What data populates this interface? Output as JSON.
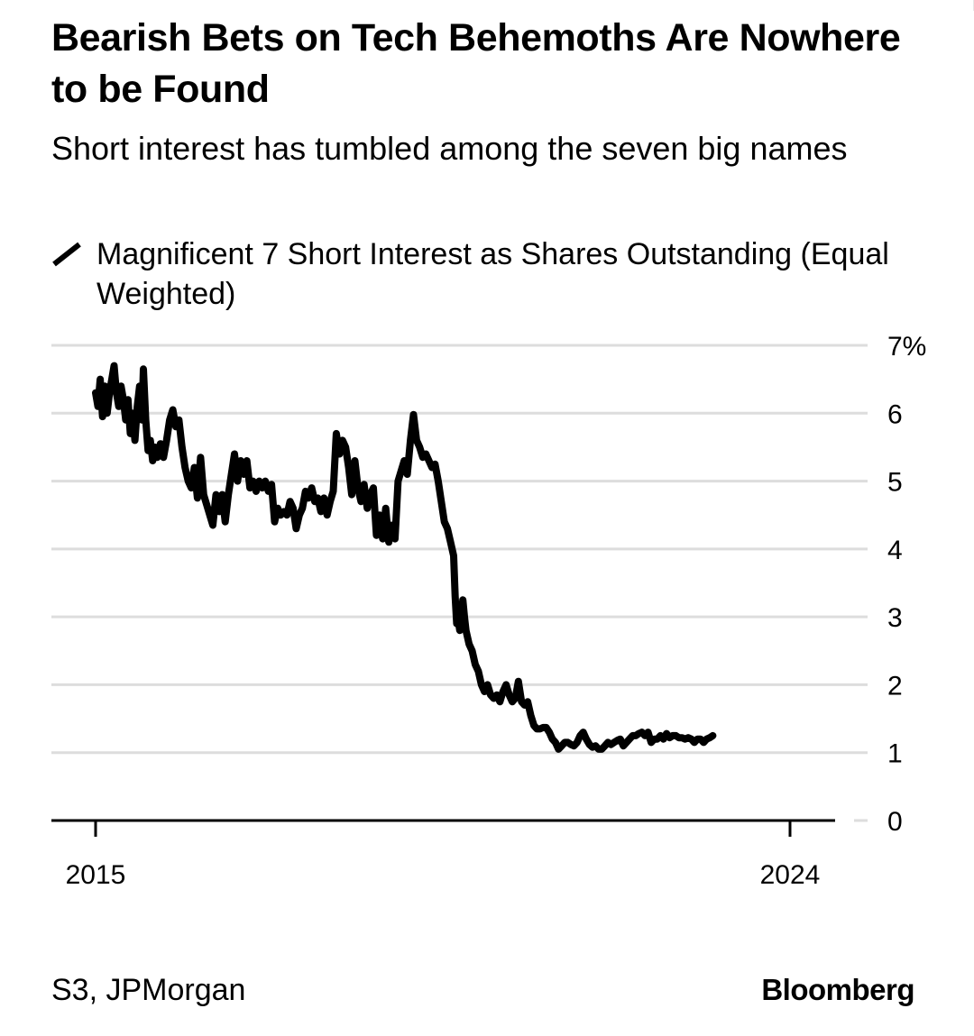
{
  "title": "Bearish Bets on Tech Behemoths Are Nowhere to be Found",
  "subtitle": "Short interest has tumbled among the seven big names",
  "source": "S3, JPMorgan",
  "brand": "Bloomberg",
  "colors": {
    "line": "#000000",
    "grid": "#dddddd",
    "text": "#000000",
    "background": "#ffffff"
  },
  "chart_data": {
    "type": "line",
    "legend_position": "top-left",
    "grid": true,
    "x_range": [
      2015.0,
      2024.1
    ],
    "ylim": [
      0,
      7
    ],
    "x_ticks": [
      {
        "value": 2015,
        "label": "2015"
      },
      {
        "value": 2024,
        "label": "2024"
      }
    ],
    "y_ticks": [
      {
        "value": 0,
        "label": "0"
      },
      {
        "value": 1,
        "label": "1"
      },
      {
        "value": 2,
        "label": "2"
      },
      {
        "value": 3,
        "label": "3"
      },
      {
        "value": 4,
        "label": "4"
      },
      {
        "value": 5,
        "label": "5"
      },
      {
        "value": 6,
        "label": "6"
      },
      {
        "value": 7,
        "label": "7%"
      }
    ],
    "series": [
      {
        "name": "Magnificent 7 Short Interest as Shares Outstanding (Equal Weighted)",
        "points": [
          [
            2015.0,
            6.3
          ],
          [
            2015.03,
            6.1
          ],
          [
            2015.06,
            6.5
          ],
          [
            2015.09,
            5.95
          ],
          [
            2015.12,
            6.4
          ],
          [
            2015.15,
            6.0
          ],
          [
            2015.18,
            6.3
          ],
          [
            2015.21,
            6.5
          ],
          [
            2015.24,
            6.7
          ],
          [
            2015.27,
            6.3
          ],
          [
            2015.3,
            6.1
          ],
          [
            2015.33,
            6.4
          ],
          [
            2015.36,
            6.2
          ],
          [
            2015.39,
            5.9
          ],
          [
            2015.42,
            6.2
          ],
          [
            2015.45,
            5.7
          ],
          [
            2015.48,
            6.0
          ],
          [
            2015.51,
            5.6
          ],
          [
            2015.54,
            6.1
          ],
          [
            2015.57,
            6.4
          ],
          [
            2015.6,
            5.9
          ],
          [
            2015.62,
            6.65
          ],
          [
            2015.65,
            5.9
          ],
          [
            2015.68,
            5.45
          ],
          [
            2015.71,
            5.6
          ],
          [
            2015.74,
            5.3
          ],
          [
            2015.77,
            5.5
          ],
          [
            2015.8,
            5.35
          ],
          [
            2015.84,
            5.55
          ],
          [
            2015.88,
            5.35
          ],
          [
            2015.92,
            5.6
          ],
          [
            2015.96,
            5.9
          ],
          [
            2016.0,
            6.05
          ],
          [
            2016.04,
            5.8
          ],
          [
            2016.08,
            5.9
          ],
          [
            2016.12,
            5.5
          ],
          [
            2016.16,
            5.2
          ],
          [
            2016.2,
            5.0
          ],
          [
            2016.24,
            4.9
          ],
          [
            2016.28,
            5.2
          ],
          [
            2016.32,
            4.75
          ],
          [
            2016.36,
            5.35
          ],
          [
            2016.4,
            4.8
          ],
          [
            2016.44,
            4.65
          ],
          [
            2016.48,
            4.5
          ],
          [
            2016.52,
            4.35
          ],
          [
            2016.56,
            4.8
          ],
          [
            2016.6,
            4.55
          ],
          [
            2016.64,
            4.8
          ],
          [
            2016.68,
            4.4
          ],
          [
            2016.72,
            4.8
          ],
          [
            2016.76,
            5.1
          ],
          [
            2016.8,
            5.4
          ],
          [
            2016.84,
            5.0
          ],
          [
            2016.88,
            5.3
          ],
          [
            2016.92,
            5.1
          ],
          [
            2016.96,
            5.3
          ],
          [
            2017.0,
            4.9
          ],
          [
            2017.04,
            5.0
          ],
          [
            2017.08,
            4.85
          ],
          [
            2017.12,
            5.0
          ],
          [
            2017.16,
            4.9
          ],
          [
            2017.2,
            5.0
          ],
          [
            2017.24,
            4.85
          ],
          [
            2017.28,
            4.95
          ],
          [
            2017.32,
            4.4
          ],
          [
            2017.36,
            4.6
          ],
          [
            2017.4,
            4.5
          ],
          [
            2017.44,
            4.55
          ],
          [
            2017.48,
            4.5
          ],
          [
            2017.52,
            4.7
          ],
          [
            2017.56,
            4.6
          ],
          [
            2017.6,
            4.3
          ],
          [
            2017.64,
            4.5
          ],
          [
            2017.68,
            4.6
          ],
          [
            2017.72,
            4.85
          ],
          [
            2017.76,
            4.75
          ],
          [
            2017.8,
            4.9
          ],
          [
            2017.84,
            4.7
          ],
          [
            2017.88,
            4.75
          ],
          [
            2017.92,
            4.55
          ],
          [
            2017.96,
            4.75
          ],
          [
            2018.0,
            4.5
          ],
          [
            2018.04,
            4.7
          ],
          [
            2018.08,
            4.85
          ],
          [
            2018.12,
            5.7
          ],
          [
            2018.16,
            5.4
          ],
          [
            2018.2,
            5.6
          ],
          [
            2018.24,
            5.5
          ],
          [
            2018.28,
            5.2
          ],
          [
            2018.32,
            4.8
          ],
          [
            2018.36,
            5.3
          ],
          [
            2018.4,
            4.9
          ],
          [
            2018.44,
            4.7
          ],
          [
            2018.48,
            4.95
          ],
          [
            2018.52,
            4.6
          ],
          [
            2018.56,
            4.8
          ],
          [
            2018.6,
            4.9
          ],
          [
            2018.64,
            4.2
          ],
          [
            2018.68,
            4.5
          ],
          [
            2018.72,
            4.15
          ],
          [
            2018.76,
            4.6
          ],
          [
            2018.8,
            4.1
          ],
          [
            2018.84,
            4.35
          ],
          [
            2018.88,
            4.15
          ],
          [
            2018.92,
            5.0
          ],
          [
            2018.96,
            5.15
          ],
          [
            2019.0,
            5.3
          ],
          [
            2019.04,
            5.1
          ],
          [
            2019.08,
            5.6
          ],
          [
            2019.12,
            5.98
          ],
          [
            2019.16,
            5.6
          ],
          [
            2019.2,
            5.5
          ],
          [
            2019.24,
            5.35
          ],
          [
            2019.28,
            5.4
          ],
          [
            2019.32,
            5.3
          ],
          [
            2019.36,
            5.2
          ],
          [
            2019.4,
            5.25
          ],
          [
            2019.44,
            5.0
          ],
          [
            2019.48,
            4.7
          ],
          [
            2019.52,
            4.4
          ],
          [
            2019.56,
            4.3
          ],
          [
            2019.6,
            4.1
          ],
          [
            2019.64,
            3.9
          ],
          [
            2019.66,
            3.3
          ],
          [
            2019.68,
            2.9
          ],
          [
            2019.7,
            2.95
          ],
          [
            2019.72,
            2.8
          ],
          [
            2019.74,
            3.0
          ],
          [
            2019.76,
            3.25
          ],
          [
            2019.78,
            3.0
          ],
          [
            2019.8,
            2.8
          ],
          [
            2019.84,
            2.6
          ],
          [
            2019.88,
            2.5
          ],
          [
            2019.92,
            2.3
          ],
          [
            2019.96,
            2.2
          ],
          [
            2020.0,
            2.0
          ],
          [
            2020.04,
            1.9
          ],
          [
            2020.08,
            2.0
          ],
          [
            2020.12,
            1.85
          ],
          [
            2020.16,
            1.8
          ],
          [
            2020.2,
            1.85
          ],
          [
            2020.24,
            1.75
          ],
          [
            2020.28,
            1.9
          ],
          [
            2020.32,
            2.0
          ],
          [
            2020.36,
            1.85
          ],
          [
            2020.4,
            1.75
          ],
          [
            2020.44,
            1.8
          ],
          [
            2020.48,
            2.05
          ],
          [
            2020.52,
            1.75
          ],
          [
            2020.56,
            1.7
          ],
          [
            2020.6,
            1.75
          ],
          [
            2020.64,
            1.55
          ],
          [
            2020.68,
            1.4
          ],
          [
            2020.72,
            1.35
          ],
          [
            2020.76,
            1.35
          ],
          [
            2020.8,
            1.37
          ],
          [
            2020.84,
            1.37
          ],
          [
            2020.88,
            1.3
          ],
          [
            2020.92,
            1.2
          ],
          [
            2020.96,
            1.15
          ],
          [
            2021.0,
            1.05
          ],
          [
            2021.04,
            1.1
          ],
          [
            2021.08,
            1.15
          ],
          [
            2021.12,
            1.15
          ],
          [
            2021.16,
            1.12
          ],
          [
            2021.2,
            1.1
          ],
          [
            2021.24,
            1.15
          ],
          [
            2021.28,
            1.25
          ],
          [
            2021.32,
            1.3
          ],
          [
            2021.36,
            1.2
          ],
          [
            2021.4,
            1.12
          ],
          [
            2021.44,
            1.08
          ],
          [
            2021.48,
            1.1
          ],
          [
            2021.52,
            1.05
          ],
          [
            2021.56,
            1.05
          ],
          [
            2021.6,
            1.1
          ],
          [
            2021.64,
            1.15
          ],
          [
            2021.68,
            1.12
          ],
          [
            2021.72,
            1.15
          ],
          [
            2021.76,
            1.18
          ],
          [
            2021.8,
            1.2
          ],
          [
            2021.84,
            1.1
          ],
          [
            2021.88,
            1.15
          ],
          [
            2021.92,
            1.2
          ],
          [
            2021.96,
            1.25
          ],
          [
            2022.0,
            1.25
          ],
          [
            2022.04,
            1.28
          ],
          [
            2022.08,
            1.3
          ],
          [
            2022.12,
            1.25
          ],
          [
            2022.16,
            1.3
          ],
          [
            2022.2,
            1.15
          ],
          [
            2022.24,
            1.2
          ],
          [
            2022.28,
            1.2
          ],
          [
            2022.32,
            1.25
          ],
          [
            2022.36,
            1.2
          ],
          [
            2022.4,
            1.28
          ],
          [
            2022.44,
            1.22
          ],
          [
            2022.48,
            1.25
          ],
          [
            2022.52,
            1.25
          ],
          [
            2022.56,
            1.22
          ],
          [
            2022.6,
            1.22
          ],
          [
            2022.64,
            1.2
          ],
          [
            2022.68,
            1.22
          ],
          [
            2022.72,
            1.2
          ],
          [
            2022.76,
            1.15
          ],
          [
            2022.8,
            1.2
          ],
          [
            2022.84,
            1.2
          ],
          [
            2022.88,
            1.15
          ],
          [
            2022.92,
            1.2
          ],
          [
            2022.96,
            1.22
          ],
          [
            2023.0,
            1.25
          ]
        ]
      }
    ]
  }
}
